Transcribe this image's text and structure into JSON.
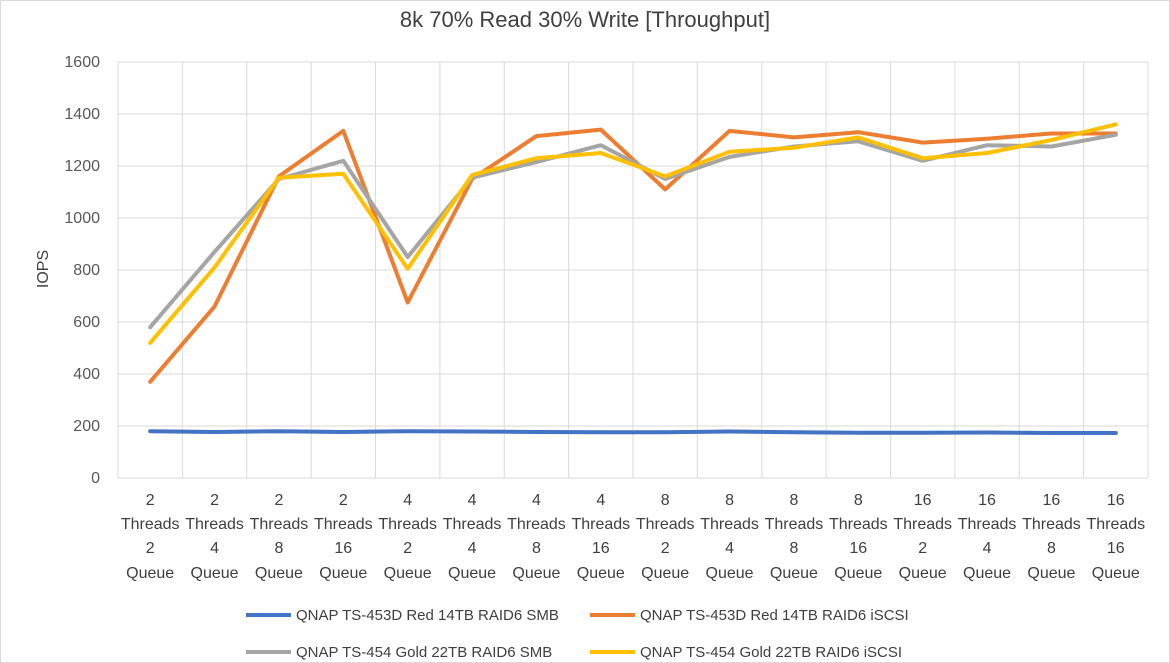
{
  "chart_data": {
    "type": "line",
    "title": "8k 70% Read 30% Write [Throughput]",
    "xlabel": "",
    "ylabel": "IOPS",
    "ylim": [
      0,
      1600
    ],
    "yticks": [
      0,
      200,
      400,
      600,
      800,
      1000,
      1200,
      1400,
      1600
    ],
    "grid": true,
    "legend_position": "bottom",
    "categories": [
      [
        "2",
        "Threads",
        "2",
        "Queue"
      ],
      [
        "2",
        "Threads",
        "4",
        "Queue"
      ],
      [
        "2",
        "Threads",
        "8",
        "Queue"
      ],
      [
        "2",
        "Threads",
        "16",
        "Queue"
      ],
      [
        "4",
        "Threads",
        "2",
        "Queue"
      ],
      [
        "4",
        "Threads",
        "4",
        "Queue"
      ],
      [
        "4",
        "Threads",
        "8",
        "Queue"
      ],
      [
        "4",
        "Threads",
        "16",
        "Queue"
      ],
      [
        "8",
        "Threads",
        "2",
        "Queue"
      ],
      [
        "8",
        "Threads",
        "4",
        "Queue"
      ],
      [
        "8",
        "Threads",
        "8",
        "Queue"
      ],
      [
        "8",
        "Threads",
        "16",
        "Queue"
      ],
      [
        "16",
        "Threads",
        "2",
        "Queue"
      ],
      [
        "16",
        "Threads",
        "4",
        "Queue"
      ],
      [
        "16",
        "Threads",
        "8",
        "Queue"
      ],
      [
        "16",
        "Threads",
        "16",
        "Queue"
      ]
    ],
    "series": [
      {
        "name": "QNAP TS-453D Red 14TB RAID6 SMB",
        "color": "#4472C4",
        "values": [
          180,
          177,
          180,
          177,
          180,
          179,
          177,
          176,
          176,
          179,
          176,
          174,
          174,
          175,
          173,
          173
        ]
      },
      {
        "name": "QNAP TS-453D Red 14TB RAID6 iSCSI",
        "color": "#ED7D31",
        "values": [
          370,
          660,
          1160,
          1335,
          675,
          1150,
          1315,
          1340,
          1110,
          1335,
          1310,
          1330,
          1290,
          1305,
          1325,
          1325
        ]
      },
      {
        "name": "QNAP TS-454 Gold 22TB RAID6 SMB",
        "color": "#A5A5A5",
        "values": [
          580,
          870,
          1150,
          1220,
          850,
          1155,
          1215,
          1280,
          1150,
          1235,
          1275,
          1295,
          1220,
          1280,
          1275,
          1320
        ]
      },
      {
        "name": "QNAP TS-454 Gold 22TB RAID6 iSCSI",
        "color": "#FFC000",
        "values": [
          520,
          810,
          1155,
          1170,
          805,
          1165,
          1230,
          1250,
          1160,
          1255,
          1270,
          1310,
          1230,
          1250,
          1300,
          1360
        ]
      }
    ]
  }
}
